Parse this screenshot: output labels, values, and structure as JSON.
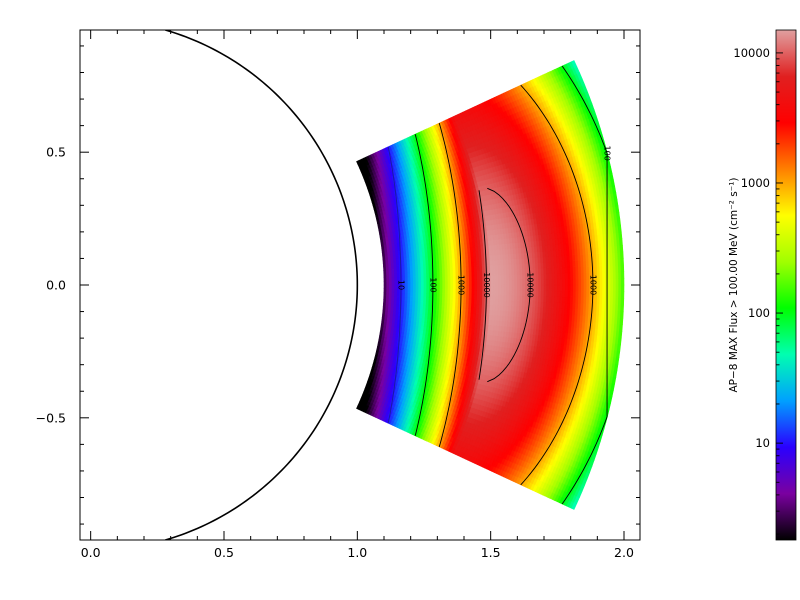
{
  "chart_data": {
    "type": "heatmap",
    "plot": {
      "xlim": [
        -0.04,
        2.06
      ],
      "ylim": [
        -0.96,
        0.96
      ],
      "x_ticks": [
        0.0,
        0.5,
        1.0,
        1.5,
        2.0
      ],
      "x_tick_labels": [
        "0.0",
        "0.5",
        "1.0",
        "1.5",
        "2.0"
      ],
      "y_ticks": [
        -0.5,
        0.0,
        0.5
      ],
      "y_tick_labels": [
        "−0.5",
        "0.0",
        "0.5"
      ],
      "earth_radius": 1.0
    },
    "field": {
      "r_inner": 1.1,
      "r_outer": 2.0,
      "lat_limit_deg": 25,
      "peak_radius": 1.5,
      "peak_flux": 15000
    },
    "contours": [
      {
        "level": 1000,
        "label": "1000"
      },
      {
        "level": 10000,
        "label": "10000"
      },
      {
        "level": 100,
        "label": "100"
      },
      {
        "level": 10,
        "label": "10"
      }
    ],
    "colorbar": {
      "scale": "log",
      "range": [
        1.8,
        15000
      ],
      "ticks": [
        10,
        100,
        1000,
        10000
      ],
      "tick_labels": [
        "10",
        "100",
        "1000",
        "10000"
      ],
      "label": "AP−8 MAX Flux > 100.00 MeV (cm⁻² s⁻¹)",
      "colormap": [
        "#000000",
        "#7a00a0",
        "#2a00ff",
        "#00a0ff",
        "#00ffb0",
        "#00ff00",
        "#a0ff00",
        "#ffff00",
        "#ff8000",
        "#ff0000",
        "#e02020",
        "#e0a0a0"
      ]
    }
  }
}
